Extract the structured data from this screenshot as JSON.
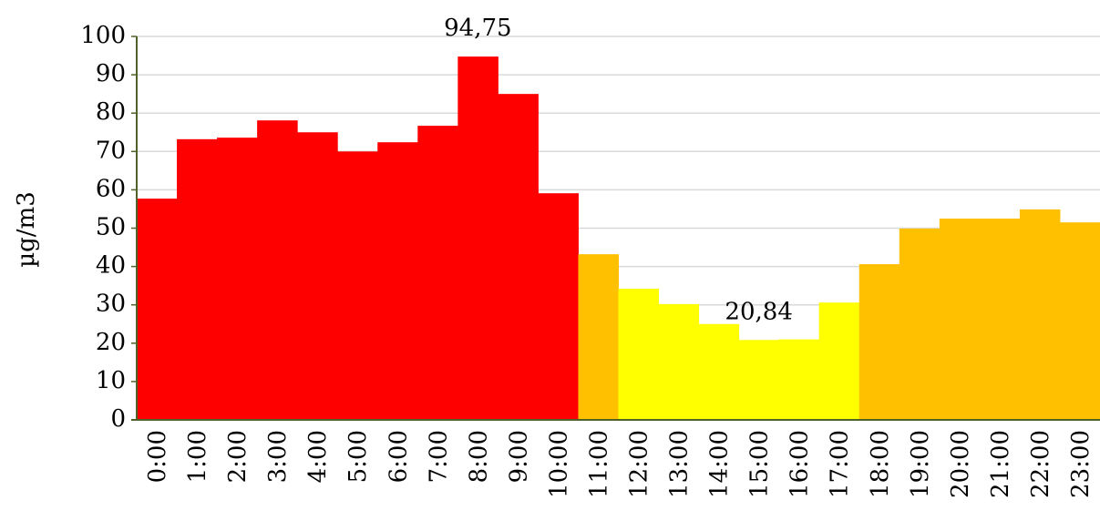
{
  "chart_data": {
    "type": "bar",
    "y_label": "µg/m3",
    "categories": [
      "0:00",
      "1:00",
      "2:00",
      "3:00",
      "4:00",
      "5:00",
      "6:00",
      "7:00",
      "8:00",
      "9:00",
      "10:00",
      "11:00",
      "12:00",
      "13:00",
      "14:00",
      "15:00",
      "16:00",
      "17:00",
      "18:00",
      "19:00",
      "20:00",
      "21:00",
      "22:00",
      "23:00"
    ],
    "values": [
      57.7,
      73.2,
      73.6,
      78.1,
      75,
      70,
      72.4,
      76.7,
      94.75,
      85,
      59.1,
      43.2,
      34.2,
      30.2,
      25,
      20.84,
      21,
      30.6,
      40.6,
      49.9,
      52.5,
      52.5,
      54.9,
      51.5
    ],
    "value_labels": [
      null,
      null,
      null,
      null,
      null,
      null,
      null,
      null,
      "94,75",
      null,
      null,
      null,
      null,
      null,
      null,
      "20,84",
      null,
      null,
      null,
      null,
      null,
      null,
      null,
      null
    ],
    "colors": [
      "#ff0000",
      "#ff0000",
      "#ff0000",
      "#ff0000",
      "#ff0000",
      "#ff0000",
      "#ff0000",
      "#ff0000",
      "#ff0000",
      "#ff0000",
      "#ff0000",
      "#ffc000",
      "#ffff00",
      "#ffff00",
      "#ffff00",
      "#ffff00",
      "#ffff00",
      "#ffff00",
      "#ffc000",
      "#ffc000",
      "#ffc000",
      "#ffc000",
      "#ffc000",
      "#ffc000"
    ],
    "ylim": [
      0,
      100
    ],
    "yticks": [
      0,
      10,
      20,
      30,
      40,
      50,
      60,
      70,
      80,
      90,
      100
    ],
    "grid": true
  }
}
